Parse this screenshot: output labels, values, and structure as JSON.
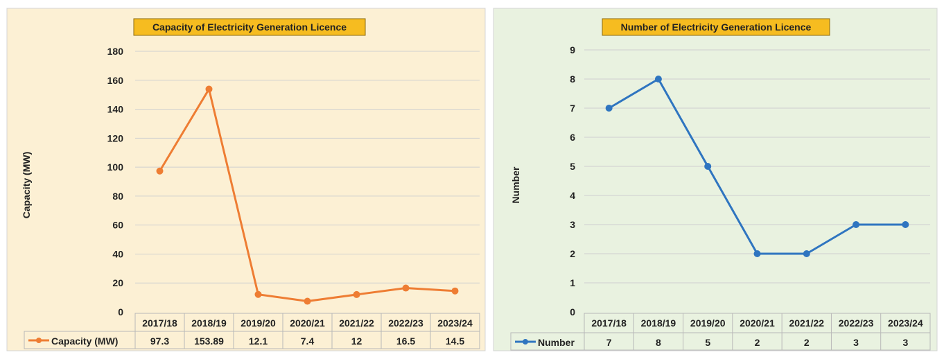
{
  "chart_data": [
    {
      "type": "line",
      "title": "Capacity of Electricity Generation Licence",
      "ylabel": "Capacity (MW)",
      "xlabel": "",
      "categories": [
        "2017/18",
        "2018/19",
        "2019/20",
        "2020/21",
        "2021/22",
        "2022/23",
        "2023/24"
      ],
      "series": [
        {
          "name": "Capacity (MW)",
          "values": [
            97.3,
            153.89,
            12.1,
            7.4,
            12,
            16.5,
            14.5
          ]
        }
      ],
      "table_values": [
        "97.3",
        "153.89",
        "12.1",
        "7.4",
        "12",
        "16.5",
        "14.5"
      ],
      "ylim": [
        0,
        180
      ],
      "yticks": [
        0,
        20,
        40,
        60,
        80,
        100,
        120,
        140,
        160,
        180
      ],
      "grid": true,
      "legend": "data-table",
      "colors": {
        "line": "#ee7d33",
        "panel": "#fcf0d4",
        "title_bg": "#f6bc20"
      }
    },
    {
      "type": "line",
      "title": "Number of Electricity Generation Licence",
      "ylabel": "Number",
      "xlabel": "",
      "categories": [
        "2017/18",
        "2018/19",
        "2019/20",
        "2020/21",
        "2021/22",
        "2022/23",
        "2023/24"
      ],
      "series": [
        {
          "name": "Number",
          "values": [
            7,
            8,
            5,
            2,
            2,
            3,
            3
          ]
        }
      ],
      "table_values": [
        "7",
        "8",
        "5",
        "2",
        "2",
        "3",
        "3"
      ],
      "ylim": [
        0,
        9
      ],
      "yticks": [
        0,
        1,
        2,
        3,
        4,
        5,
        6,
        7,
        8,
        9
      ],
      "grid": true,
      "legend": "data-table",
      "colors": {
        "line": "#2f75c0",
        "panel": "#e9f2e0",
        "title_bg": "#f6bc20"
      }
    }
  ]
}
